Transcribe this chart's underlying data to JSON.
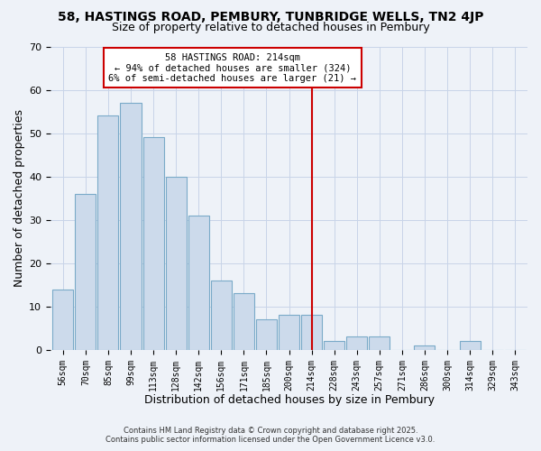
{
  "title": "58, HASTINGS ROAD, PEMBURY, TUNBRIDGE WELLS, TN2 4JP",
  "subtitle": "Size of property relative to detached houses in Pembury",
  "xlabel": "Distribution of detached houses by size in Pembury",
  "ylabel": "Number of detached properties",
  "bin_labels": [
    "56sqm",
    "70sqm",
    "85sqm",
    "99sqm",
    "113sqm",
    "128sqm",
    "142sqm",
    "156sqm",
    "171sqm",
    "185sqm",
    "200sqm",
    "214sqm",
    "228sqm",
    "243sqm",
    "257sqm",
    "271sqm",
    "286sqm",
    "300sqm",
    "314sqm",
    "329sqm",
    "343sqm"
  ],
  "bin_values": [
    14,
    36,
    54,
    57,
    49,
    40,
    31,
    16,
    13,
    7,
    8,
    8,
    2,
    3,
    3,
    0,
    1,
    0,
    2,
    0,
    0
  ],
  "bar_color": "#ccdaeb",
  "bar_edge_color": "#7aaac8",
  "vline_x_index": 11,
  "vline_color": "#cc0000",
  "annotation_line1": "58 HASTINGS ROAD: 214sqm",
  "annotation_line2": "← 94% of detached houses are smaller (324)",
  "annotation_line3": "6% of semi-detached houses are larger (21) →",
  "annotation_box_color": "#cc0000",
  "annotation_box_fill": "#ffffff",
  "ylim": [
    0,
    70
  ],
  "yticks": [
    0,
    10,
    20,
    30,
    40,
    50,
    60,
    70
  ],
  "grid_color": "#c8d4e8",
  "bg_color": "#eef2f8",
  "footer1": "Contains HM Land Registry data © Crown copyright and database right 2025.",
  "footer2": "Contains public sector information licensed under the Open Government Licence v3.0."
}
